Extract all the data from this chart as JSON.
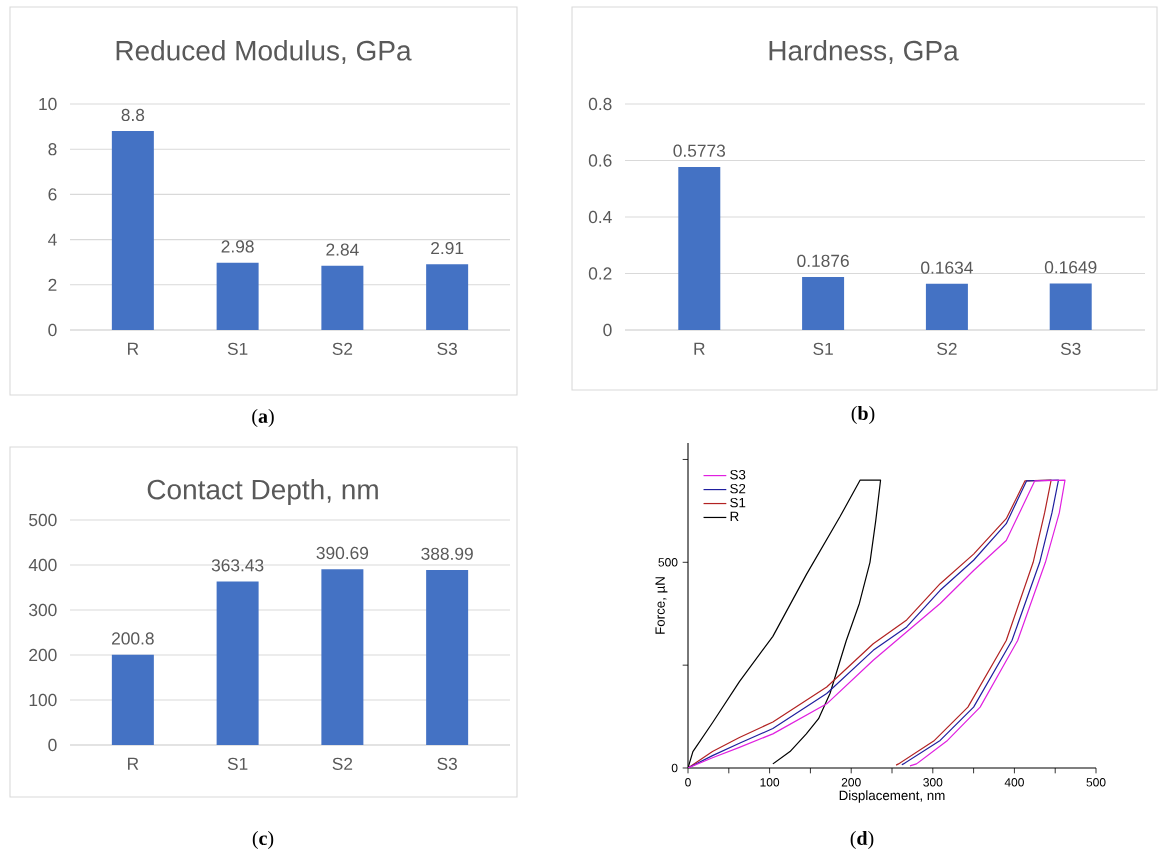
{
  "chart_data": [
    {
      "type": "bar",
      "title": "Reduced Modulus, GPa",
      "categories": [
        "R",
        "S1",
        "S2",
        "S3"
      ],
      "values": [
        8.8,
        2.98,
        2.84,
        2.91
      ],
      "color": "#4472c4",
      "ylim": [
        0,
        10
      ],
      "yticks": [
        0,
        2,
        4,
        6,
        8,
        10
      ],
      "grid": "y",
      "data_labels": true,
      "annotations": [
        "(**a**)"
      ]
    },
    {
      "type": "bar",
      "title": "Hardness, GPa",
      "categories": [
        "R",
        "S1",
        "S2",
        "S3"
      ],
      "values": [
        0.5773,
        0.1876,
        0.1634,
        0.1649
      ],
      "color": "#4472c4",
      "ylim": [
        0,
        0.8
      ],
      "yticks": [
        0,
        0.2,
        0.4,
        0.6,
        0.8
      ],
      "grid": "y",
      "data_labels": true,
      "annotations": [
        "(**b**)"
      ]
    },
    {
      "type": "bar",
      "title": "Contact Depth, nm",
      "categories": [
        "R",
        "S1",
        "S2",
        "S3"
      ],
      "values": [
        200.8,
        363.43,
        390.69,
        388.99
      ],
      "color": "#4472c4",
      "ylim": [
        0,
        500
      ],
      "yticks": [
        0,
        100,
        200,
        300,
        400,
        500
      ],
      "grid": "y",
      "data_labels": true,
      "annotations": [
        "(**c**)"
      ]
    },
    {
      "type": "line",
      "xlabel": "Displacement, nm",
      "ylabel": "Force, µN",
      "xlim": [
        0,
        500
      ],
      "ylim": [
        0,
        790
      ],
      "xticks": [
        0,
        {
          "value": 50,
          "label": null
        },
        100,
        {
          "value": 150,
          "label": null
        },
        200,
        {
          "value": 250,
          "label": null
        },
        300,
        {
          "value": 350,
          "label": null
        },
        400,
        {
          "value": 450,
          "label": null
        },
        500
      ],
      "yticks": [
        0,
        {
          "value": 250,
          "label": null
        },
        500,
        {
          "value": 750,
          "label": null
        }
      ],
      "legend": "top left",
      "annotations": [
        "(**d**)"
      ],
      "series": [
        {
          "name": "S3",
          "color": "#e020e0",
          "x": [
            0,
            30,
            63,
            104,
            170,
            227,
            309,
            350,
            390,
            425,
            462,
            455,
            438,
            404,
            358,
            318,
            280,
            272
          ],
          "values": [
            0,
            25,
            50,
            83,
            156,
            262,
            400,
            480,
            553,
            698,
            700,
            620,
            500,
            310,
            148,
            67,
            10,
            5
          ]
        },
        {
          "name": "S2",
          "color": "#1f1f9f",
          "x": [
            0,
            30,
            63,
            104,
            170,
            227,
            268,
            309,
            350,
            390,
            415,
            454,
            446,
            431,
            397,
            350,
            309,
            264,
            262
          ],
          "values": [
            0,
            30,
            60,
            96,
            181,
            286,
            343,
            432,
            505,
            594,
            698,
            700,
            620,
            500,
            310,
            148,
            67,
            10,
            8
          ]
        },
        {
          "name": "S1",
          "color": "#b22222",
          "x": [
            0,
            30,
            63,
            104,
            170,
            227,
            268,
            309,
            350,
            390,
            413,
            445,
            437,
            423,
            390,
            343,
            302,
            258,
            255
          ],
          "values": [
            0,
            40,
            74,
            112,
            197,
            302,
            360,
            448,
            520,
            606,
            698,
            700,
            620,
            500,
            310,
            148,
            67,
            10,
            7
          ]
        },
        {
          "name": "R",
          "color": "#000000",
          "x": [
            0,
            6,
            30,
            63,
            104,
            145,
            186,
            211,
            236,
            230,
            223,
            210,
            194,
            174,
            160,
            145,
            125,
            104
          ],
          "values": [
            0,
            40,
            110,
            210,
            320,
            470,
            610,
            700,
            700,
            600,
            500,
            400,
            310,
            181,
            120,
            83,
            40,
            10
          ]
        }
      ]
    }
  ]
}
